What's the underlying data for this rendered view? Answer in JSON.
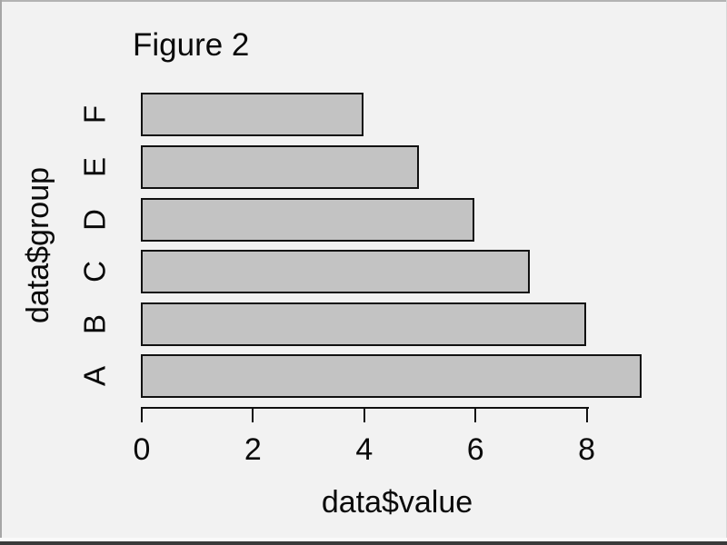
{
  "window": {
    "background_color": "#f2f2f2",
    "border_color": "#a6a6a6",
    "bottom_bar_color": "#3a3a3a"
  },
  "chart_data": {
    "type": "bar",
    "orientation": "horizontal",
    "title": "Figure 2",
    "xlabel": "data$value",
    "ylabel": "data$group",
    "categories": [
      "F",
      "E",
      "D",
      "C",
      "B",
      "A"
    ],
    "values": [
      4,
      5,
      6,
      7,
      8,
      9
    ],
    "x_ticks": [
      0,
      2,
      4,
      6,
      8
    ],
    "xlim": [
      0,
      9
    ],
    "grid": false,
    "legend": false,
    "bar_fill_color": "#c3c3c3",
    "bar_border_color": "#111111",
    "axis_color": "#111111",
    "text_color": "#0a0a0a"
  }
}
